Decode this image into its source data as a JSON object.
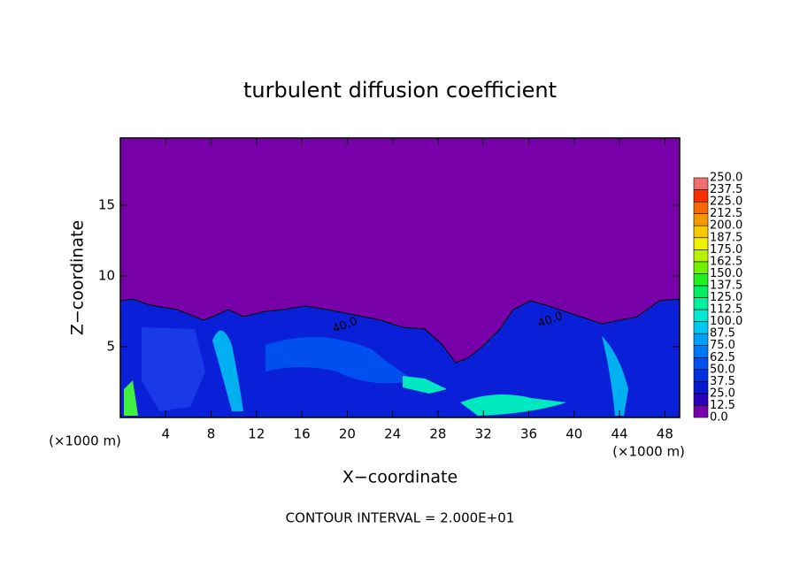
{
  "chart_data": {
    "type": "contour",
    "title": "turbulent diffusion coefficient",
    "x_label": "X−coordinate",
    "y_label": "Z−coordinate",
    "x_unit_label": "(×1000 m)",
    "x_unit_label_right": "(×1000 m)",
    "footer": "CONTOUR INTERVAL = 2.000E+01",
    "contour_labels": [
      "40.0",
      "40.0"
    ],
    "xlim": [
      0,
      49.3
    ],
    "xticks": [
      4,
      8,
      12,
      16,
      20,
      24,
      28,
      32,
      36,
      40,
      44,
      48
    ],
    "ylim": [
      0,
      19.75
    ],
    "yticks": [
      5,
      10,
      15
    ],
    "levels": [
      {
        "value": 0,
        "label": "0.0"
      },
      12.5,
      {
        "value": 25,
        "label": "25.0"
      },
      37.5,
      {
        "value": 50,
        "label": "50.0"
      },
      62.5,
      {
        "value": 75,
        "label": "75.0"
      },
      87.5,
      {
        "value": 100,
        "label": "100.0"
      },
      112.5,
      {
        "value": 125,
        "label": "125.0"
      },
      137.5,
      {
        "value": 150,
        "label": "150.0"
      },
      162.5,
      {
        "value": 175,
        "label": "175.0"
      },
      187.5,
      {
        "value": 200,
        "label": "200.0"
      },
      212.5,
      {
        "value": 225,
        "label": "225.0"
      },
      237.5,
      {
        "value": 250,
        "label": "250.0"
      }
    ],
    "level_colors": [
      "#7800a8",
      "#2a00b8",
      "#0818d0",
      "#0030e0",
      "#0050f0",
      "#0078f8",
      "#00a0f8",
      "#00c8f0",
      "#00e8d0",
      "#00f0a0",
      "#00f060",
      "#20f020",
      "#70f000",
      "#b8f000",
      "#f0f000",
      "#f8c800",
      "#f89800",
      "#f86800",
      "#f83000",
      "#f07070"
    ]
  }
}
